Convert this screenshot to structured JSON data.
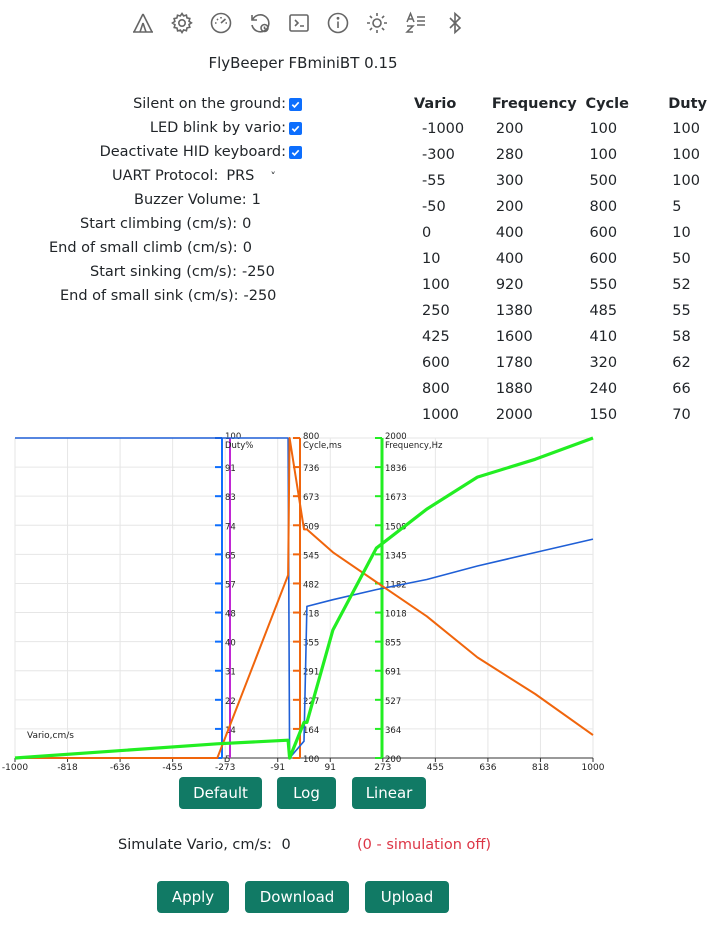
{
  "toolbar": {
    "icons": [
      "tent-icon",
      "gear-icon",
      "gauge-icon",
      "history-icon",
      "terminal-icon",
      "info-icon",
      "brightness-icon",
      "text-format-icon",
      "bluetooth-icon"
    ]
  },
  "app_title": "FlyBeeper FBminiBT 0.15",
  "settings": {
    "silent_label": "Silent on the ground:",
    "silent_checked": true,
    "led_label": "LED blink by vario:",
    "led_checked": true,
    "hid_label": "Deactivate HID keyboard:",
    "hid_checked": true,
    "uart_label": "UART Protocol:",
    "uart_value": "PRS",
    "buzzer_label": "Buzzer Volume:",
    "buzzer_value": "1",
    "start_climb_label": "Start climbing (cm/s):",
    "start_climb_value": "0",
    "end_small_climb_label": "End of small climb (cm/s):",
    "end_small_climb_value": "0",
    "start_sink_label": "Start sinking (cm/s):",
    "start_sink_value": "-250",
    "end_small_sink_label": "End of small sink (cm/s):",
    "end_small_sink_value": "-250"
  },
  "table": {
    "headers": [
      "Vario",
      "Frequency",
      "Cycle",
      "Duty"
    ],
    "rows": [
      [
        "-1000",
        "200",
        "100",
        "100"
      ],
      [
        "-300",
        "280",
        "100",
        "100"
      ],
      [
        "-55",
        "300",
        "500",
        "100"
      ],
      [
        "-50",
        "200",
        "800",
        "5"
      ],
      [
        "0",
        "400",
        "600",
        "10"
      ],
      [
        "10",
        "400",
        "600",
        "50"
      ],
      [
        "100",
        "920",
        "550",
        "52"
      ],
      [
        "250",
        "1380",
        "485",
        "55"
      ],
      [
        "425",
        "1600",
        "410",
        "58"
      ],
      [
        "600",
        "1780",
        "320",
        "62"
      ],
      [
        "800",
        "1880",
        "240",
        "66"
      ],
      [
        "1000",
        "2000",
        "150",
        "70"
      ]
    ]
  },
  "chart_data": {
    "type": "line",
    "xlabel": "Vario,cm/s",
    "xlim": [
      -1000,
      1000
    ],
    "x_ticks": [
      "-1000",
      "-818",
      "-636",
      "-455",
      "-273",
      "-91",
      "91",
      "273",
      "455",
      "636",
      "818",
      "1000"
    ],
    "axes": [
      {
        "name": "Duty%",
        "top": "100",
        "ticks": [
          "91",
          "83",
          "74",
          "65",
          "57",
          "48",
          "40",
          "31",
          "22",
          "14",
          "5"
        ],
        "color": "#0d6efd"
      },
      {
        "name": "Cycle,ms",
        "top": "800",
        "ticks": [
          "736",
          "673",
          "609",
          "545",
          "482",
          "418",
          "355",
          "291",
          "227",
          "164",
          "100"
        ],
        "color": "#f0650c"
      },
      {
        "name": "Frequency,Hz",
        "top": "2000",
        "ticks": [
          "1836",
          "1673",
          "1509",
          "1345",
          "1182",
          "1018",
          "855",
          "691",
          "527",
          "364",
          "200"
        ],
        "color": "#22ee22"
      }
    ],
    "series": [
      {
        "color": "#1f5fd6",
        "x": [
          -1000,
          -300,
          -55,
          -50,
          0,
          10,
          100,
          250,
          425,
          600,
          800,
          1000
        ],
        "y": [
          100,
          100,
          100,
          5,
          10,
          50,
          52,
          55,
          58,
          62,
          66,
          70
        ],
        "ylim": [
          5,
          100
        ]
      },
      {
        "color": "#f0650c",
        "x": [
          -1000,
          -300,
          -55,
          -50,
          0,
          10,
          100,
          250,
          425,
          600,
          800,
          1000
        ],
        "y": [
          100,
          100,
          500,
          800,
          600,
          600,
          550,
          485,
          410,
          320,
          240,
          150
        ],
        "ylim": [
          100,
          800
        ]
      },
      {
        "color": "#22ee22",
        "x": [
          -1000,
          -300,
          -55,
          -50,
          0,
          10,
          100,
          250,
          425,
          600,
          800,
          1000
        ],
        "y": [
          200,
          280,
          300,
          200,
          400,
          400,
          920,
          1380,
          1600,
          1780,
          1880,
          2000
        ],
        "ylim": [
          200,
          2000
        ]
      }
    ],
    "vline_color": "#c026d3",
    "grid": true
  },
  "buttons": {
    "default": "Default",
    "log": "Log",
    "linear": "Linear",
    "apply": "Apply",
    "download": "Download",
    "upload": "Upload"
  },
  "simulate": {
    "label": "Simulate Vario, cm/s:",
    "value": "0",
    "hint": "(0 - simulation off)",
    "hint_color": "#dc3545"
  },
  "colors": {
    "button": "#117a65",
    "checkbox": "#0d6efd"
  }
}
